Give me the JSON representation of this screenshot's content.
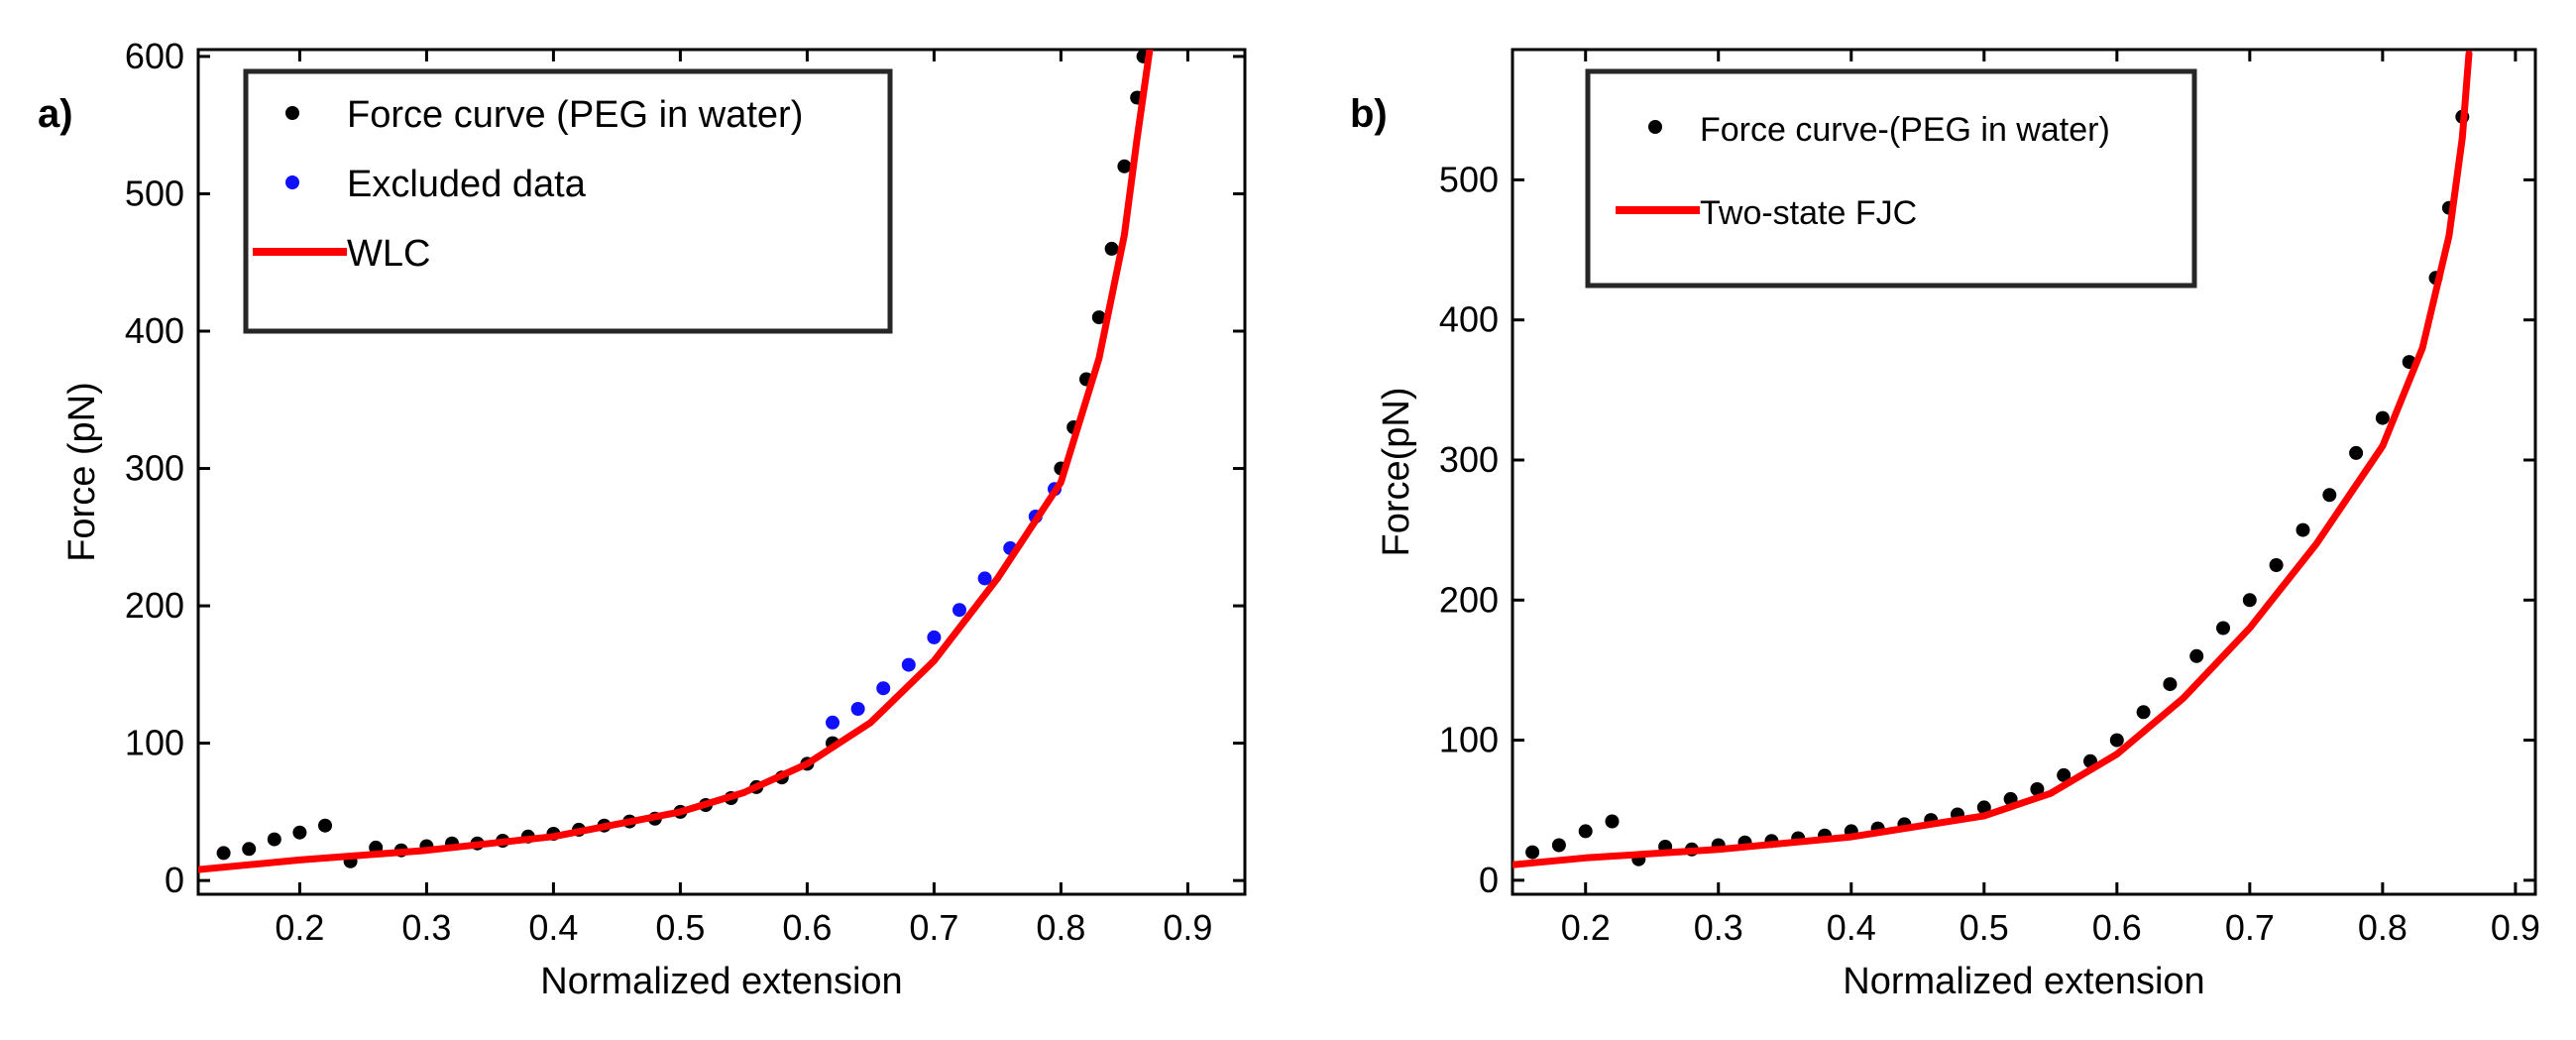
{
  "colors": {
    "data_black": "#000000",
    "excluded_blue": "#1010ff",
    "fit_red": "#ff0000",
    "axes": "#000000",
    "background": "#ffffff"
  },
  "chart_data": [
    {
      "panel_label": "a)",
      "type": "scatter",
      "xlabel": "Normalized extension",
      "ylabel": "Force (pN)",
      "xlim": [
        0.12,
        0.945
      ],
      "ylim": [
        -10,
        605
      ],
      "xticks": [
        0.2,
        0.3,
        0.4,
        0.5,
        0.6,
        0.7,
        0.8,
        0.9
      ],
      "yticks": [
        0,
        100,
        200,
        300,
        400,
        500,
        600
      ],
      "grid": false,
      "legend_position": "top-left",
      "legend": [
        {
          "label": "Force curve (PEG in water)",
          "marker": "dot",
          "color": "#000000"
        },
        {
          "label": "Excluded data",
          "marker": "dot",
          "color": "#1010ff"
        },
        {
          "label": "WLC",
          "marker": "line",
          "color": "#ff0000"
        }
      ],
      "series": [
        {
          "name": "Force curve (PEG in water)",
          "style": "dots",
          "color": "#000000",
          "x": [
            0.14,
            0.16,
            0.18,
            0.2,
            0.22,
            0.24,
            0.26,
            0.28,
            0.3,
            0.32,
            0.34,
            0.36,
            0.38,
            0.4,
            0.42,
            0.44,
            0.46,
            0.48,
            0.5,
            0.52,
            0.54,
            0.56,
            0.58,
            0.6,
            0.62,
            0.8,
            0.81,
            0.82,
            0.83,
            0.84,
            0.85,
            0.86,
            0.865
          ],
          "y": [
            20,
            23,
            30,
            35,
            40,
            14,
            24,
            22,
            25,
            27,
            27,
            29,
            32,
            34,
            37,
            40,
            43,
            45,
            50,
            55,
            60,
            68,
            75,
            85,
            100,
            300,
            330,
            365,
            410,
            460,
            520,
            570,
            600
          ]
        },
        {
          "name": "Excluded data",
          "style": "dots",
          "color": "#1010ff",
          "x": [
            0.62,
            0.64,
            0.66,
            0.68,
            0.7,
            0.72,
            0.74,
            0.76,
            0.78,
            0.795
          ],
          "y": [
            115,
            125,
            140,
            157,
            177,
            197,
            220,
            242,
            265,
            285
          ]
        },
        {
          "name": "WLC",
          "style": "line",
          "color": "#ff0000",
          "x": [
            0.12,
            0.2,
            0.3,
            0.4,
            0.5,
            0.55,
            0.6,
            0.65,
            0.7,
            0.75,
            0.8,
            0.83,
            0.85,
            0.86,
            0.87
          ],
          "y": [
            8,
            15,
            22,
            32,
            50,
            64,
            85,
            115,
            160,
            220,
            290,
            380,
            470,
            540,
            605
          ]
        }
      ]
    },
    {
      "panel_label": "b)",
      "type": "scatter",
      "xlabel": "Normalized extension",
      "ylabel": "Force(pN)",
      "xlim": [
        0.145,
        0.915
      ],
      "ylim": [
        -10,
        593
      ],
      "xticks": [
        0.2,
        0.3,
        0.4,
        0.5,
        0.6,
        0.7,
        0.8,
        0.9
      ],
      "yticks": [
        0,
        100,
        200,
        300,
        400,
        500
      ],
      "grid": false,
      "legend_position": "top-left",
      "legend": [
        {
          "label": "Force curve-(PEG in water)",
          "marker": "dot",
          "color": "#000000"
        },
        {
          "label": "Two-state FJC",
          "marker": "line",
          "color": "#ff0000"
        }
      ],
      "series": [
        {
          "name": "Force curve-(PEG in water)",
          "style": "dots",
          "color": "#000000",
          "x": [
            0.16,
            0.18,
            0.2,
            0.22,
            0.24,
            0.26,
            0.28,
            0.3,
            0.32,
            0.34,
            0.36,
            0.38,
            0.4,
            0.42,
            0.44,
            0.46,
            0.48,
            0.5,
            0.52,
            0.54,
            0.56,
            0.58,
            0.6,
            0.62,
            0.64,
            0.66,
            0.68,
            0.7,
            0.72,
            0.74,
            0.76,
            0.78,
            0.8,
            0.82,
            0.84,
            0.85,
            0.86
          ],
          "y": [
            20,
            25,
            35,
            42,
            15,
            24,
            22,
            25,
            27,
            28,
            30,
            32,
            35,
            37,
            40,
            43,
            47,
            52,
            58,
            65,
            75,
            85,
            100,
            120,
            140,
            160,
            180,
            200,
            225,
            250,
            275,
            305,
            330,
            370,
            430,
            480,
            545
          ]
        },
        {
          "name": "Two-state FJC",
          "style": "line",
          "color": "#ff0000",
          "x": [
            0.145,
            0.2,
            0.3,
            0.4,
            0.5,
            0.55,
            0.6,
            0.65,
            0.7,
            0.75,
            0.8,
            0.83,
            0.85,
            0.86,
            0.865
          ],
          "y": [
            11,
            16,
            22,
            31,
            46,
            62,
            90,
            130,
            180,
            240,
            310,
            380,
            460,
            530,
            590
          ]
        }
      ]
    }
  ]
}
